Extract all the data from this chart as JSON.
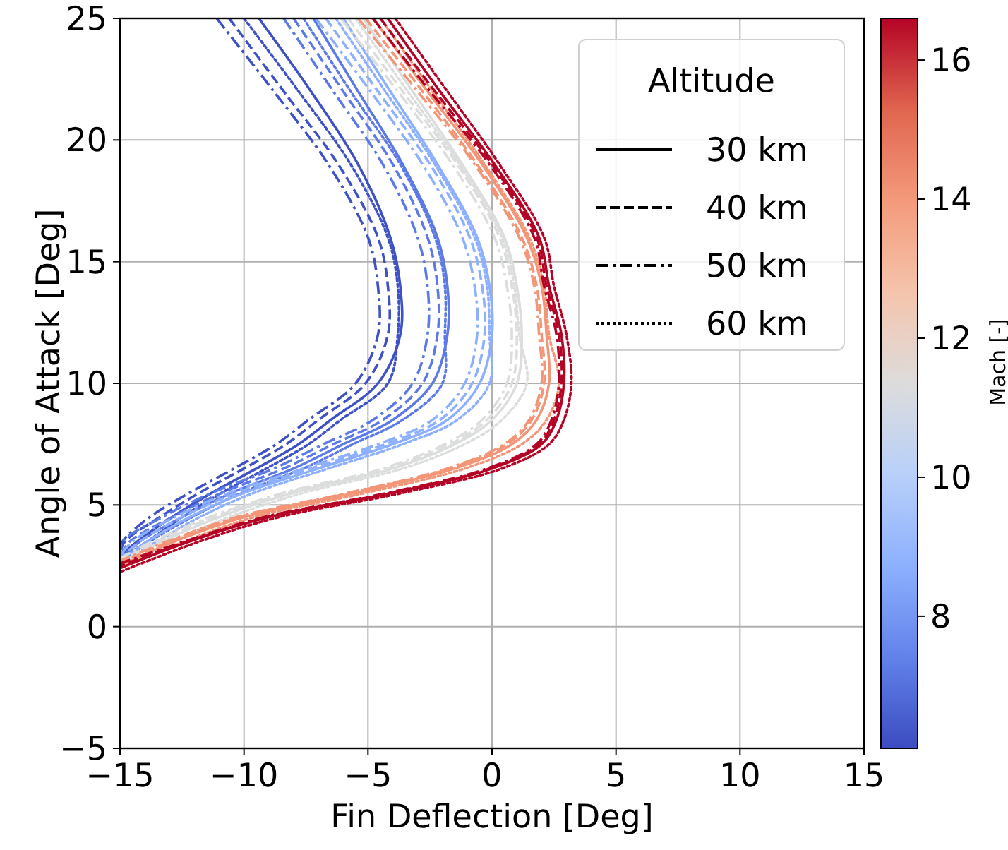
{
  "chart_data": {
    "type": "line",
    "xlabel": "Fin Deflection [Deg]",
    "ylabel": "Angle of Attack [Deg]",
    "legend_title": "Altitude",
    "clabel": "Mach [-]",
    "xlim": [
      -15,
      15
    ],
    "xticks": [
      {
        "value": -15,
        "label": "−15"
      },
      {
        "value": -10,
        "label": "−10"
      },
      {
        "value": -5,
        "label": "−5"
      },
      0,
      5,
      10,
      15
    ],
    "ylim": [
      -5,
      25
    ],
    "yticks": [
      {
        "value": -5,
        "label": "−5"
      },
      0,
      5,
      10,
      15,
      20,
      25
    ],
    "clim": [
      6.1,
      16.6
    ],
    "cticks": [
      8,
      10,
      12,
      14,
      16
    ],
    "grid": true,
    "legend": "top right",
    "series": [
      {
        "color": "#3e51c5",
        "line_style": "solid",
        "x": [
          -9.4,
          -7.3,
          -5.4,
          -4.1,
          -3.7,
          -3.7,
          -4.6,
          -6.5,
          -7.8,
          -9.5,
          -11.3,
          -12.9,
          -14.3,
          -15
        ],
        "values": [
          25,
          22,
          19,
          16,
          14,
          12,
          10,
          8.5,
          7.5,
          6.5,
          5.5,
          4.5,
          3.5,
          2.9
        ]
      },
      {
        "color": "#3e51c5",
        "line_style": "dashed",
        "x": [
          -10.6,
          -8.4,
          -6.2,
          -4.6,
          -4.2,
          -4.2,
          -5.1,
          -7,
          -8.3,
          -10,
          -11.8,
          -13.4,
          -14.8,
          -15
        ],
        "values": [
          25,
          22,
          19,
          16,
          14,
          12,
          10,
          8.5,
          7.5,
          6.5,
          5.5,
          4.5,
          3.5,
          3.05
        ]
      },
      {
        "color": "#3e51c5",
        "line_style": "dashdot",
        "x": [
          -11.1,
          -8.8,
          -6.6,
          -5,
          -4.6,
          -4.6,
          -5.5,
          -7.4,
          -8.7,
          -10.4,
          -12.2,
          -13.8,
          -14.9,
          -15
        ],
        "values": [
          25,
          22,
          19,
          16,
          14,
          12,
          10,
          8.5,
          7.5,
          6.5,
          5.5,
          4.5,
          3.5,
          3.15
        ]
      },
      {
        "color": "#3e51c5",
        "line_style": "dotted",
        "x": [
          -10,
          -7.8,
          -5.7,
          -4.2,
          -3.8,
          -3.8,
          -4.2,
          -6.1,
          -7.4,
          -9.1,
          -10.9,
          -12.5,
          -13.9,
          -15
        ],
        "values": [
          25,
          22,
          19,
          16,
          14,
          12,
          10,
          8.5,
          7.5,
          6.5,
          5.5,
          4.5,
          3.5,
          2.8
        ]
      },
      {
        "color": "#5b7ae5",
        "line_style": "solid",
        "x": [
          -7.2,
          -5.4,
          -3.6,
          -2.2,
          -1.8,
          -1.8,
          -2.4,
          -4,
          -6,
          -8,
          -10.5,
          -12.5,
          -14.2,
          -15
        ],
        "values": [
          25,
          22,
          19,
          16,
          14,
          12,
          10,
          8.5,
          7.5,
          6.5,
          5.5,
          4.5,
          3.5,
          2.75
        ]
      },
      {
        "color": "#5b7ae5",
        "line_style": "dashed",
        "x": [
          -8,
          -6,
          -4,
          -2.6,
          -2.2,
          -2.2,
          -2.8,
          -4.4,
          -6.4,
          -8.4,
          -10.9,
          -12.9,
          -14.6,
          -15
        ],
        "values": [
          25,
          22,
          19,
          16,
          14,
          12,
          10,
          8.5,
          7.5,
          6.5,
          5.5,
          4.5,
          3.5,
          2.9
        ]
      },
      {
        "color": "#5b7ae5",
        "line_style": "dashdot",
        "x": [
          -8.4,
          -6.4,
          -4.4,
          -3,
          -2.6,
          -2.6,
          -3.2,
          -4.8,
          -6.8,
          -8.8,
          -11.3,
          -13.3,
          -14.9,
          -15
        ],
        "values": [
          25,
          22,
          19,
          16,
          14,
          12,
          10,
          8.5,
          7.5,
          6.5,
          5.5,
          4.5,
          3.5,
          3
        ]
      },
      {
        "color": "#5b7ae5",
        "line_style": "dotted",
        "x": [
          -7.6,
          -5.7,
          -3.7,
          -2.3,
          -1.9,
          -1.9,
          -2,
          -3.6,
          -5.6,
          -7.6,
          -10.1,
          -12.1,
          -13.8,
          -15
        ],
        "values": [
          25,
          22,
          19,
          16,
          14,
          12,
          10,
          8.5,
          7.5,
          6.5,
          5.5,
          4.5,
          3.5,
          2.65
        ]
      },
      {
        "color": "#8db0fe",
        "line_style": "solid",
        "x": [
          -6,
          -4.1,
          -2.2,
          -0.6,
          -0.1,
          0,
          -0.5,
          -1.8,
          -4,
          -7,
          -10,
          -12.2,
          -13.9,
          -15
        ],
        "values": [
          25,
          22,
          19,
          16,
          14,
          12,
          10,
          8.5,
          7.5,
          6.5,
          5.5,
          4.5,
          3.5,
          2.7
        ]
      },
      {
        "color": "#8db0fe",
        "line_style": "dashed",
        "x": [
          -6.7,
          -4.6,
          -2.5,
          -0.9,
          -0.4,
          -0.3,
          -0.8,
          -2.1,
          -4.3,
          -7.3,
          -10.3,
          -12.5,
          -14.2,
          -15
        ],
        "values": [
          25,
          22,
          19,
          16,
          14,
          12,
          10,
          8.5,
          7.5,
          6.5,
          5.5,
          4.5,
          3.5,
          2.8
        ]
      },
      {
        "color": "#8db0fe",
        "line_style": "dashdot",
        "x": [
          -7.1,
          -4.9,
          -2.8,
          -1.2,
          -0.7,
          -0.6,
          -1.1,
          -2.4,
          -4.6,
          -7.6,
          -10.6,
          -12.8,
          -14.5,
          -15
        ],
        "values": [
          25,
          22,
          19,
          16,
          14,
          12,
          10,
          8.5,
          7.5,
          6.5,
          5.5,
          4.5,
          3.5,
          2.9
        ]
      },
      {
        "color": "#8db0fe",
        "line_style": "dotted",
        "x": [
          -6.3,
          -4.3,
          -2.3,
          -0.7,
          -0.2,
          -0.1,
          -0.1,
          -1.4,
          -3.6,
          -6.6,
          -9.6,
          -11.8,
          -13.5,
          -15
        ],
        "values": [
          25,
          22,
          19,
          16,
          14,
          12,
          10,
          8.5,
          7.5,
          6.5,
          5.5,
          4.5,
          3.5,
          2.6
        ]
      },
      {
        "color": "#dcdddd",
        "line_style": "solid",
        "x": [
          -5.2,
          -3.2,
          -1.2,
          0.5,
          1,
          1.2,
          1,
          0,
          -1.5,
          -4,
          -8,
          -11,
          -13.3,
          -15
        ],
        "values": [
          25,
          22,
          19,
          16,
          14,
          12,
          10,
          8.5,
          7.5,
          6.5,
          5.5,
          4.5,
          3.5,
          2.6
        ]
      },
      {
        "color": "#dcdddd",
        "line_style": "dashed",
        "x": [
          -5.8,
          -3.6,
          -1.4,
          0.3,
          0.8,
          1,
          0.8,
          -0.2,
          -1.7,
          -4.2,
          -8.2,
          -11.2,
          -13.5,
          -15
        ],
        "values": [
          25,
          22,
          19,
          16,
          14,
          12,
          10,
          8.5,
          7.5,
          6.5,
          5.5,
          4.5,
          3.5,
          2.7
        ]
      },
      {
        "color": "#dcdddd",
        "line_style": "dashdot",
        "x": [
          -6.1,
          -3.8,
          -1.6,
          0.1,
          0.6,
          0.8,
          0.6,
          -0.4,
          -1.9,
          -4.4,
          -8.4,
          -11.4,
          -13.7,
          -15
        ],
        "values": [
          25,
          22,
          19,
          16,
          14,
          12,
          10,
          8.5,
          7.5,
          6.5,
          5.5,
          4.5,
          3.5,
          2.8
        ]
      },
      {
        "color": "#dcdddd",
        "line_style": "dotted",
        "x": [
          -5.5,
          -3.4,
          -1.3,
          0.4,
          0.9,
          1.1,
          1.4,
          0.4,
          -1.1,
          -3.6,
          -7.6,
          -10.6,
          -12.9,
          -15
        ],
        "values": [
          25,
          22,
          19,
          16,
          14,
          12,
          10,
          8.5,
          7.5,
          6.5,
          5.5,
          4.5,
          3.5,
          2.5
        ]
      },
      {
        "color": "#f39577",
        "line_style": "solid",
        "x": [
          -4.8,
          -2.6,
          -0.4,
          1.4,
          2,
          2.2,
          2.3,
          1.8,
          0.8,
          -1.5,
          -5.5,
          -10,
          -12.8,
          -15
        ],
        "values": [
          25,
          22,
          19,
          16,
          14,
          12,
          10,
          8.5,
          7.5,
          6.5,
          5.5,
          4.5,
          3.5,
          2.5
        ]
      },
      {
        "color": "#f39577",
        "line_style": "dashed",
        "x": [
          -5.1,
          -2.8,
          -0.6,
          1.2,
          1.8,
          2,
          2.1,
          1.6,
          0.6,
          -1.7,
          -5.7,
          -10.2,
          -13,
          -15
        ],
        "values": [
          25,
          22,
          19,
          16,
          14,
          12,
          10,
          8.5,
          7.5,
          6.5,
          5.5,
          4.5,
          3.5,
          2.6
        ]
      },
      {
        "color": "#f39577",
        "line_style": "dashdot",
        "x": [
          -5.4,
          -3,
          -0.7,
          1.1,
          1.7,
          1.9,
          2,
          1.5,
          0.5,
          -1.8,
          -5.8,
          -10.3,
          -13.1,
          -15
        ],
        "values": [
          25,
          22,
          19,
          16,
          14,
          12,
          10,
          8.5,
          7.5,
          6.5,
          5.5,
          4.5,
          3.5,
          2.7
        ]
      },
      {
        "color": "#f39577",
        "line_style": "dotted",
        "x": [
          -4.5,
          -2.4,
          -0.3,
          1.5,
          2.1,
          2.3,
          2.7,
          2.2,
          1.2,
          -1.1,
          -5.1,
          -9.6,
          -12.4,
          -15
        ],
        "values": [
          25,
          22,
          19,
          16,
          14,
          12,
          10,
          8.5,
          7.5,
          6.5,
          5.5,
          4.5,
          3.5,
          2.4
        ]
      },
      {
        "color": "#b40426",
        "line_style": "solid",
        "x": [
          -4.2,
          -2.1,
          0.1,
          1.9,
          2.3,
          2.8,
          2.9,
          2.6,
          2,
          0,
          -4,
          -9,
          -12.2,
          -15
        ],
        "values": [
          25,
          22,
          19,
          16,
          14,
          12,
          10,
          8.5,
          7.5,
          6.5,
          5.5,
          4.5,
          3.5,
          2.4
        ]
      },
      {
        "color": "#b40426",
        "line_style": "dashed",
        "x": [
          -4.5,
          -2.3,
          0,
          1.8,
          2.2,
          2.7,
          2.8,
          2.5,
          1.9,
          -0.1,
          -4.1,
          -9.1,
          -12.3,
          -15
        ],
        "values": [
          25,
          22,
          19,
          16,
          14,
          12,
          10,
          8.5,
          7.5,
          6.5,
          5.5,
          4.5,
          3.5,
          2.5
        ]
      },
      {
        "color": "#b40426",
        "line_style": "dashdot",
        "x": [
          -4.8,
          -2.5,
          -0.1,
          1.7,
          2.1,
          2.6,
          2.7,
          2.4,
          1.8,
          -0.2,
          -4.2,
          -9.2,
          -12.4,
          -15
        ],
        "values": [
          25,
          22,
          19,
          16,
          14,
          12,
          10,
          8.5,
          7.5,
          6.5,
          5.5,
          4.5,
          3.5,
          2.6
        ]
      },
      {
        "color": "#b40426",
        "line_style": "dotted",
        "x": [
          -3.9,
          -1.8,
          0.3,
          2.1,
          2.5,
          3,
          3.2,
          2.9,
          2.3,
          0.4,
          -3.6,
          -8.6,
          -11.8,
          -15
        ],
        "values": [
          25,
          22,
          19,
          16,
          14,
          12,
          10,
          8.5,
          7.5,
          6.5,
          5.5,
          4.5,
          3.5,
          2.25
        ]
      },
      {
        "name": "30 km",
        "color": "#000000",
        "line_style": "solid"
      },
      {
        "name": "40 km",
        "color": "#000000",
        "line_style": "dashed"
      },
      {
        "name": "50 km",
        "color": "#000000",
        "line_style": "dashdot"
      },
      {
        "name": "60 km",
        "color": "#000000",
        "line_style": "dotted"
      }
    ]
  }
}
